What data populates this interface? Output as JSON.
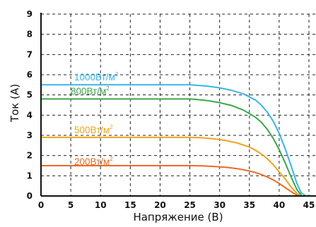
{
  "chart_data": {
    "type": "line",
    "xlabel": "Напряжение (В)",
    "ylabel": "Ток (А)",
    "xlim": [
      0,
      45
    ],
    "ylim": [
      0,
      9
    ],
    "x_ticks": [
      "0",
      "5",
      "10",
      "15",
      "20",
      "25",
      "30",
      "35",
      "40",
      "45"
    ],
    "y_ticks": [
      "0",
      "1",
      "2",
      "3",
      "4",
      "5",
      "6",
      "7",
      "8",
      "9"
    ],
    "grid": true,
    "series": [
      {
        "name": "1000Вт/м²",
        "label_text": "1000Вт/м",
        "label_sup": "2",
        "color": "#3ab4e6",
        "x": [
          0,
          5,
          10,
          15,
          20,
          25,
          26,
          28,
          30,
          32,
          34,
          36,
          37,
          38,
          39,
          40,
          41,
          42,
          43,
          43.7,
          44.5
        ],
        "y": [
          5.5,
          5.5,
          5.5,
          5.5,
          5.5,
          5.5,
          5.48,
          5.43,
          5.35,
          5.23,
          5.05,
          4.75,
          4.5,
          4.15,
          3.7,
          3.1,
          2.35,
          1.5,
          0.6,
          0.15,
          0
        ]
      },
      {
        "name": "800Вт/м²",
        "label_text": "800Вт/м",
        "label_sup": "2",
        "color": "#3aa648",
        "x": [
          0,
          5,
          10,
          15,
          20,
          25,
          26,
          28,
          30,
          32,
          34,
          36,
          37,
          38,
          39,
          40,
          41,
          42,
          43,
          43.8
        ],
        "y": [
          4.8,
          4.8,
          4.8,
          4.8,
          4.8,
          4.8,
          4.78,
          4.72,
          4.62,
          4.48,
          4.25,
          3.9,
          3.65,
          3.3,
          2.85,
          2.3,
          1.65,
          0.95,
          0.3,
          0
        ]
      },
      {
        "name": "500Вт/м²",
        "label_text": "500Вт/м",
        "label_sup": "2",
        "color": "#f0a21b",
        "x": [
          0,
          5,
          10,
          15,
          20,
          25,
          27,
          29,
          31,
          33,
          35,
          36,
          37,
          38,
          39,
          40,
          41,
          42,
          43,
          43.6
        ],
        "y": [
          2.9,
          2.9,
          2.9,
          2.9,
          2.9,
          2.9,
          2.88,
          2.83,
          2.75,
          2.62,
          2.42,
          2.27,
          2.08,
          1.85,
          1.55,
          1.2,
          0.85,
          0.45,
          0.12,
          0
        ]
      },
      {
        "name": "200Вт/м²",
        "label_text": "200Вт/м",
        "label_sup": "2",
        "color": "#ec6a25",
        "x": [
          0,
          5,
          10,
          15,
          20,
          25,
          27,
          29,
          31,
          33,
          35,
          36,
          37,
          38,
          39,
          40,
          41,
          42,
          43.2
        ],
        "y": [
          1.5,
          1.5,
          1.5,
          1.5,
          1.5,
          1.5,
          1.49,
          1.46,
          1.42,
          1.35,
          1.24,
          1.16,
          1.06,
          0.94,
          0.8,
          0.62,
          0.42,
          0.22,
          0
        ]
      }
    ]
  }
}
